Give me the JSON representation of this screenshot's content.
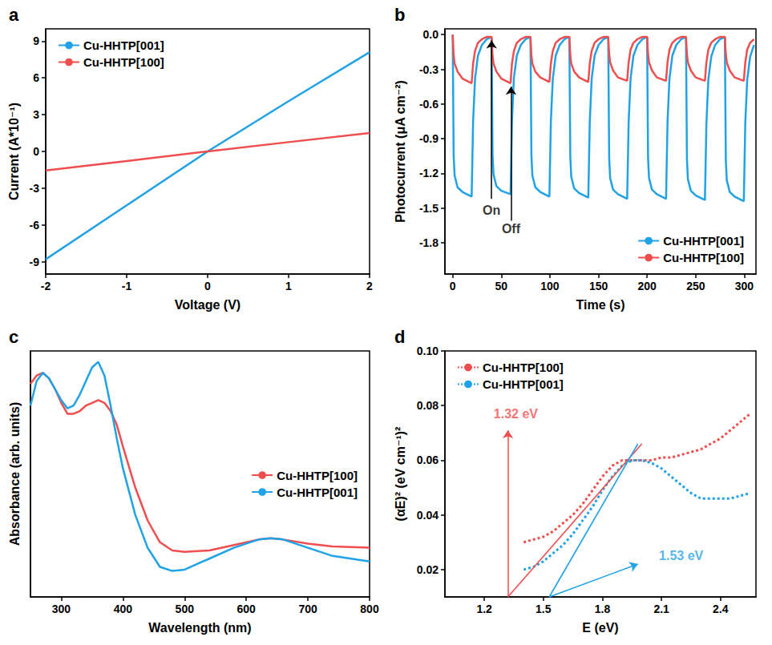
{
  "chart_data": [
    {
      "type": "line",
      "label": "a",
      "x_label": "Voltage (V)",
      "y_label": "Current (A*10⁻¹)",
      "x": [
        -2,
        -1,
        0,
        1,
        2
      ],
      "series": [
        {
          "name": "Cu-HHTP[001]",
          "color": "#1fa2e6",
          "line_style": "solid",
          "marker": "none",
          "values": [
            -8.8,
            -4.4,
            0,
            4.1,
            8.1
          ]
        },
        {
          "name": "Cu-HHTP[100]",
          "color": "#f04e4e",
          "line_style": "solid",
          "marker": "none",
          "values": [
            -1.55,
            -0.78,
            0,
            0.76,
            1.5
          ]
        }
      ],
      "xlim": [
        -2,
        2
      ],
      "xticks": [
        -2,
        -1,
        0,
        1,
        2
      ],
      "ylim": [
        -10,
        10
      ],
      "yticks": [
        -9,
        -6,
        -3,
        0,
        3,
        6,
        9
      ],
      "grid": false,
      "legend": "upper left"
    },
    {
      "type": "line",
      "label": "b",
      "x_label": "Time (s)",
      "y_label": "Photocurrent (μA cm⁻²)",
      "x": [
        0,
        1,
        2,
        5,
        10,
        19.5,
        21,
        23,
        26,
        30,
        35,
        40,
        41,
        42,
        45,
        50,
        59.5,
        61,
        63,
        66,
        70,
        75,
        80,
        81,
        82,
        85,
        90,
        99.5,
        101,
        103,
        106,
        110,
        115,
        120,
        121,
        122,
        125,
        130,
        139.5,
        141,
        143,
        146,
        150,
        155,
        160,
        161,
        162,
        165,
        170,
        179.5,
        181,
        183,
        186,
        190,
        195,
        200,
        201,
        202,
        205,
        210,
        219.5,
        221,
        223,
        226,
        230,
        235,
        240,
        241,
        242,
        245,
        250,
        259.5,
        261,
        263,
        266,
        270,
        275,
        280,
        281,
        282,
        285,
        290,
        299.5,
        301,
        303,
        306,
        310
      ],
      "series": [
        {
          "name": "Cu-HHTP[001]",
          "color": "#1fa2e6",
          "line_style": "solid",
          "marker": "none",
          "values": [
            0,
            -1.05,
            -1.22,
            -1.32,
            -1.36,
            -1.4,
            -0.75,
            -0.38,
            -0.18,
            -0.09,
            -0.04,
            -0.02,
            -1.04,
            -1.21,
            -1.31,
            -1.35,
            -1.38,
            -0.74,
            -0.37,
            -0.18,
            -0.09,
            -0.04,
            -0.02,
            -1.05,
            -1.22,
            -1.32,
            -1.36,
            -1.4,
            -0.75,
            -0.38,
            -0.18,
            -0.09,
            -0.04,
            -0.02,
            -1.06,
            -1.23,
            -1.33,
            -1.37,
            -1.41,
            -0.76,
            -0.38,
            -0.18,
            -0.09,
            -0.04,
            -0.02,
            -1.07,
            -1.24,
            -1.34,
            -1.38,
            -1.42,
            -0.76,
            -0.38,
            -0.18,
            -0.09,
            -0.04,
            -0.02,
            -1.07,
            -1.24,
            -1.34,
            -1.38,
            -1.42,
            -0.76,
            -0.38,
            -0.18,
            -0.09,
            -0.04,
            -0.02,
            -1.08,
            -1.25,
            -1.35,
            -1.39,
            -1.43,
            -0.77,
            -0.39,
            -0.19,
            -0.09,
            -0.04,
            -0.02,
            -1.09,
            -1.26,
            -1.36,
            -1.4,
            -1.44,
            -0.77,
            -0.39,
            -0.19,
            -0.09
          ]
        },
        {
          "name": "Cu-HHTP[100]",
          "color": "#f04e4e",
          "line_style": "solid",
          "marker": "none",
          "values": [
            0,
            -0.18,
            -0.25,
            -0.32,
            -0.38,
            -0.42,
            -0.25,
            -0.14,
            -0.07,
            -0.04,
            -0.02,
            -0.02,
            -0.18,
            -0.25,
            -0.32,
            -0.38,
            -0.42,
            -0.25,
            -0.14,
            -0.07,
            -0.04,
            -0.02,
            -0.02,
            -0.18,
            -0.25,
            -0.32,
            -0.37,
            -0.41,
            -0.25,
            -0.14,
            -0.07,
            -0.04,
            -0.02,
            -0.02,
            -0.18,
            -0.25,
            -0.32,
            -0.37,
            -0.41,
            -0.25,
            -0.14,
            -0.07,
            -0.04,
            -0.02,
            -0.02,
            -0.17,
            -0.24,
            -0.31,
            -0.37,
            -0.4,
            -0.24,
            -0.13,
            -0.07,
            -0.04,
            -0.02,
            -0.02,
            -0.17,
            -0.24,
            -0.31,
            -0.37,
            -0.4,
            -0.24,
            -0.13,
            -0.07,
            -0.04,
            -0.02,
            -0.02,
            -0.17,
            -0.24,
            -0.31,
            -0.37,
            -0.4,
            -0.24,
            -0.13,
            -0.07,
            -0.04,
            -0.02,
            -0.02,
            -0.17,
            -0.24,
            -0.31,
            -0.37,
            -0.4,
            -0.24,
            -0.13,
            -0.07,
            -0.04
          ]
        }
      ],
      "annotations": [
        {
          "text": "On",
          "x": 40,
          "y": -1.52,
          "color": "#000000",
          "arrow_from": [
            40,
            -1.42
          ],
          "arrow_to": [
            40,
            -0.05
          ]
        },
        {
          "text": "Off",
          "x": 60,
          "y": -1.68,
          "color": "#000000",
          "arrow_from": [
            60,
            -1.61
          ],
          "arrow_to": [
            60,
            -0.45
          ]
        }
      ],
      "xlim": [
        -8,
        312
      ],
      "xticks": [
        0,
        50,
        100,
        150,
        200,
        250,
        300
      ],
      "ylim": [
        -2.07,
        0.05
      ],
      "yticks": [
        {
          "value": 0,
          "label": "0.0"
        },
        -0.3,
        -0.6,
        -0.9,
        -1.2,
        -1.5,
        -1.8
      ],
      "grid": false,
      "legend": "lower right"
    },
    {
      "type": "line",
      "label": "c",
      "x_label": "Wavelength (nm)",
      "y_label": "Absorbance (arb. units)",
      "x": [
        250,
        260,
        270,
        280,
        290,
        300,
        310,
        320,
        330,
        340,
        350,
        360,
        370,
        380,
        390,
        400,
        420,
        440,
        460,
        480,
        500,
        540,
        580,
        620,
        640,
        660,
        700,
        740,
        800
      ],
      "series": [
        {
          "name": "Cu-HHTP[100]",
          "color": "#f04e4e",
          "line_style": "solid",
          "marker": "none",
          "values": [
            0.88,
            0.91,
            0.92,
            0.9,
            0.86,
            0.81,
            0.77,
            0.77,
            0.78,
            0.8,
            0.81,
            0.82,
            0.81,
            0.78,
            0.73,
            0.65,
            0.5,
            0.38,
            0.3,
            0.27,
            0.265,
            0.27,
            0.29,
            0.31,
            0.315,
            0.31,
            0.295,
            0.285,
            0.28
          ]
        },
        {
          "name": "Cu-HHTP[001]",
          "color": "#1fa2e6",
          "line_style": "solid",
          "marker": "none",
          "values": [
            0.8,
            0.89,
            0.92,
            0.9,
            0.86,
            0.82,
            0.79,
            0.8,
            0.84,
            0.89,
            0.94,
            0.96,
            0.91,
            0.8,
            0.68,
            0.57,
            0.4,
            0.28,
            0.21,
            0.195,
            0.2,
            0.24,
            0.28,
            0.31,
            0.315,
            0.31,
            0.28,
            0.25,
            0.23
          ]
        }
      ],
      "xlim": [
        250,
        800
      ],
      "xticks": [
        300,
        400,
        500,
        600,
        700,
        800
      ],
      "ylim": [
        0.1,
        1.0
      ],
      "tick_labels": "x",
      "grid": false,
      "legend": "right"
    },
    {
      "type": "line",
      "label": "d",
      "x_label": "E (eV)",
      "y_label": "(αE)² (eV cm⁻¹)²",
      "x": [
        1.4,
        1.45,
        1.5,
        1.55,
        1.6,
        1.65,
        1.7,
        1.75,
        1.8,
        1.85,
        1.9,
        1.95,
        2.0,
        2.05,
        2.1,
        2.15,
        2.2,
        2.25,
        2.3,
        2.35,
        2.4,
        2.45,
        2.5,
        2.55
      ],
      "series": [
        {
          "name": "Cu-HHTP[100]",
          "color": "#f04e4e",
          "line_style": "dotted",
          "marker": "none",
          "values": [
            0.03,
            0.031,
            0.032,
            0.034,
            0.037,
            0.04,
            0.044,
            0.049,
            0.054,
            0.058,
            0.06,
            0.06,
            0.06,
            0.06,
            0.061,
            0.061,
            0.062,
            0.063,
            0.064,
            0.066,
            0.068,
            0.071,
            0.074,
            0.077
          ]
        },
        {
          "name": "Cu-HHTP[001]",
          "color": "#1fa2e6",
          "line_style": "dotted",
          "marker": "none",
          "values": [
            0.02,
            0.021,
            0.023,
            0.026,
            0.029,
            0.033,
            0.038,
            0.043,
            0.049,
            0.054,
            0.058,
            0.06,
            0.06,
            0.059,
            0.057,
            0.054,
            0.051,
            0.048,
            0.046,
            0.046,
            0.046,
            0.046,
            0.047,
            0.048
          ]
        }
      ],
      "fits": [
        {
          "color": "#f04e4e",
          "x": [
            1.32,
            2.0
          ],
          "y": [
            0.01,
            0.066
          ]
        },
        {
          "color": "#1fa2e6",
          "x": [
            1.53,
            1.98
          ],
          "y": [
            0.01,
            0.066
          ]
        }
      ],
      "annotations": [
        {
          "text": "1.32 eV",
          "x": 1.36,
          "y": 0.077,
          "color": "#f04e4e",
          "arrow_from": [
            1.32,
            0.01
          ],
          "arrow_to": [
            1.32,
            0.071
          ]
        },
        {
          "text": "1.53 eV",
          "x": 2.2,
          "y": 0.025,
          "color": "#1fa2e6",
          "arrow_from": [
            1.53,
            0.01
          ],
          "arrow_to": [
            1.98,
            0.022
          ]
        }
      ],
      "xlim": [
        1.0,
        2.58
      ],
      "xticks": [
        1.2,
        1.5,
        1.8,
        2.1,
        2.4
      ],
      "ylim": [
        0.01,
        0.1
      ],
      "yticks": [
        0.02,
        0.04,
        0.06,
        0.08,
        {
          "value": 0.1,
          "label": "0.10"
        }
      ],
      "grid": false,
      "legend": "upper left"
    }
  ]
}
